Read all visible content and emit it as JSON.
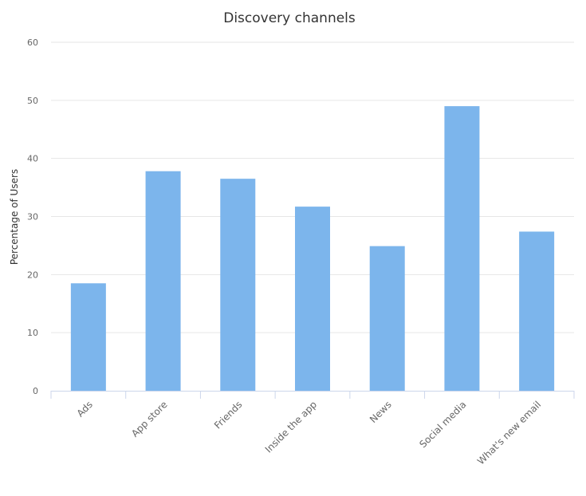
{
  "chart_data": {
    "type": "bar",
    "title": "Discovery channels",
    "xlabel": "",
    "ylabel": "Percentage of Users",
    "categories": [
      "Ads",
      "App store",
      "Friends",
      "Inside the app",
      "News",
      "Social media",
      "What's new email"
    ],
    "values": [
      18.5,
      37.8,
      36.5,
      31.7,
      24.9,
      49.0,
      27.4
    ],
    "ylim": [
      0,
      60
    ],
    "yticks": [
      0,
      10,
      20,
      30,
      40,
      50,
      60
    ],
    "grid": true,
    "legend": "none",
    "colors": {
      "bar": "#7cb5ec",
      "grid": "#e6e6e6",
      "axis": "#ccd6eb"
    }
  }
}
